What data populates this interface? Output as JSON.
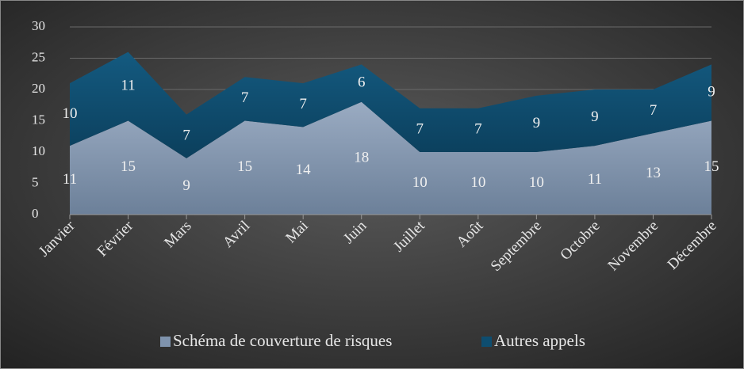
{
  "chart_data": {
    "type": "stacked_area",
    "categories": [
      "Janvier",
      "Février",
      "Mars",
      "Avril",
      "Mai",
      "Juin",
      "Juillet",
      "Août",
      "Septembre",
      "Octobre",
      "Novembre",
      "Décembre"
    ],
    "series": [
      {
        "name": "Schéma de couverture de risques",
        "color": "#7f93ad",
        "values": [
          11,
          15,
          9,
          15,
          14,
          18,
          10,
          10,
          10,
          11,
          13,
          15
        ]
      },
      {
        "name": "Autres appels",
        "color": "#0e4d6f",
        "values": [
          10,
          11,
          7,
          7,
          7,
          6,
          7,
          7,
          9,
          9,
          7,
          9
        ]
      }
    ],
    "ylim": [
      0,
      30
    ],
    "yticks": [
      0,
      5,
      10,
      15,
      20,
      25,
      30
    ],
    "grid": true,
    "legend": "bottom"
  }
}
